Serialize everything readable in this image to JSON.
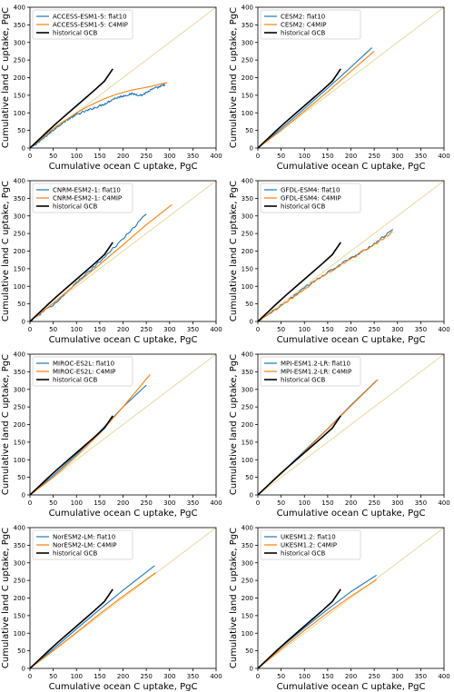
{
  "colors": {
    "flat10": "#1f77b4",
    "c4mip": "#ff7f0e",
    "gcb": "#000000",
    "one_to_one": "#e8d9a0"
  },
  "chart_data": [
    {
      "type": "line",
      "xlabel": "Cumulative ocean C uptake, PgC",
      "ylabel": "Cumulative land C uptake, PgC",
      "xlim": [
        0,
        400
      ],
      "ylim": [
        0,
        400
      ],
      "xticks": [
        0,
        50,
        100,
        150,
        200,
        250,
        300,
        350,
        400
      ],
      "yticks": [
        0,
        50,
        100,
        150,
        200,
        250,
        300,
        350,
        400
      ],
      "legend_position": "top-left",
      "series": [
        {
          "name": "ACCESS-ESM1-5: flat10",
          "style": "flat10",
          "noisy": true,
          "x": [
            0,
            20,
            40,
            60,
            80,
            100,
            120,
            140,
            160,
            180,
            200,
            220,
            240,
            260,
            280,
            290
          ],
          "y": [
            0,
            18,
            40,
            62,
            80,
            95,
            105,
            115,
            125,
            140,
            148,
            154,
            150,
            165,
            175,
            180
          ]
        },
        {
          "name": "ACCESS-ESM1-5: C4MIP",
          "style": "c4mip",
          "noisy": false,
          "x": [
            0,
            20,
            40,
            60,
            80,
            100,
            120,
            140,
            160,
            180,
            200,
            220,
            240,
            260,
            280,
            295
          ],
          "y": [
            0,
            22,
            45,
            65,
            82,
            100,
            115,
            128,
            140,
            150,
            158,
            165,
            170,
            175,
            182,
            186
          ]
        },
        {
          "name": "historical GCB",
          "style": "gcb",
          "noisy": false,
          "x": [
            0,
            20,
            40,
            60,
            80,
            100,
            120,
            140,
            160,
            178
          ],
          "y": [
            0,
            25,
            50,
            74,
            97,
            120,
            143,
            166,
            190,
            225
          ]
        }
      ]
    },
    {
      "type": "line",
      "xlabel": "Cumulative ocean C uptake, PgC",
      "ylabel": "Cumulative land C uptake, PgC",
      "xlim": [
        0,
        400
      ],
      "ylim": [
        0,
        400
      ],
      "xticks": [
        0,
        50,
        100,
        150,
        200,
        250,
        300,
        350,
        400
      ],
      "yticks": [
        0,
        50,
        100,
        150,
        200,
        250,
        300,
        350,
        400
      ],
      "legend_position": "top-left",
      "series": [
        {
          "name": "CESM2: flat10",
          "style": "flat10",
          "noisy": false,
          "x": [
            0,
            50,
            100,
            150,
            200,
            245
          ],
          "y": [
            0,
            55,
            112,
            170,
            230,
            285
          ]
        },
        {
          "name": "CESM2: C4MIP",
          "style": "c4mip",
          "noisy": false,
          "x": [
            0,
            50,
            100,
            150,
            200,
            250
          ],
          "y": [
            0,
            50,
            105,
            160,
            218,
            275
          ]
        },
        {
          "name": "historical GCB",
          "style": "gcb",
          "noisy": false,
          "x": [
            0,
            20,
            40,
            60,
            80,
            100,
            120,
            140,
            160,
            178
          ],
          "y": [
            0,
            25,
            50,
            74,
            97,
            120,
            143,
            166,
            190,
            225
          ]
        }
      ]
    },
    {
      "type": "line",
      "xlabel": "Cumulative ocean C uptake, PgC",
      "ylabel": "Cumulative land C uptake, PgC",
      "xlim": [
        0,
        400
      ],
      "ylim": [
        0,
        400
      ],
      "xticks": [
        0,
        50,
        100,
        150,
        200,
        250,
        300,
        350,
        400
      ],
      "yticks": [
        0,
        50,
        100,
        150,
        200,
        250,
        300,
        350,
        400
      ],
      "legend_position": "top-left",
      "series": [
        {
          "name": "CNRM-ESM2-1: flat10",
          "style": "flat10",
          "noisy": true,
          "x": [
            0,
            50,
            100,
            150,
            200,
            250
          ],
          "y": [
            0,
            48,
            110,
            170,
            235,
            305
          ]
        },
        {
          "name": "CNRM-ESM2-1: C4MIP",
          "style": "c4mip",
          "noisy": false,
          "x": [
            0,
            50,
            100,
            150,
            200,
            250,
            305
          ],
          "y": [
            0,
            52,
            108,
            162,
            218,
            275,
            332
          ]
        },
        {
          "name": "historical GCB",
          "style": "gcb",
          "noisy": false,
          "x": [
            0,
            20,
            40,
            60,
            80,
            100,
            120,
            140,
            160,
            178
          ],
          "y": [
            0,
            25,
            50,
            74,
            97,
            120,
            143,
            166,
            190,
            225
          ]
        }
      ]
    },
    {
      "type": "line",
      "xlabel": "Cumulative ocean C uptake, PgC",
      "ylabel": "Cumulative land C uptake, PgC",
      "xlim": [
        0,
        400
      ],
      "ylim": [
        0,
        400
      ],
      "xticks": [
        0,
        50,
        100,
        150,
        200,
        250,
        300,
        350,
        400
      ],
      "yticks": [
        0,
        50,
        100,
        150,
        200,
        250,
        300,
        350,
        400
      ],
      "legend_position": "top-left",
      "series": [
        {
          "name": "GFDL-ESM4: flat10",
          "style": "flat10",
          "noisy": true,
          "x": [
            0,
            50,
            100,
            150,
            200,
            250,
            290
          ],
          "y": [
            0,
            45,
            95,
            140,
            180,
            220,
            262
          ]
        },
        {
          "name": "GFDL-ESM4: C4MIP",
          "style": "c4mip",
          "noisy": true,
          "x": [
            0,
            50,
            100,
            150,
            200,
            250,
            290
          ],
          "y": [
            0,
            44,
            93,
            138,
            178,
            218,
            255
          ]
        },
        {
          "name": "historical GCB",
          "style": "gcb",
          "noisy": false,
          "x": [
            0,
            20,
            40,
            60,
            80,
            100,
            120,
            140,
            160,
            178
          ],
          "y": [
            0,
            25,
            50,
            74,
            97,
            120,
            143,
            166,
            190,
            225
          ]
        }
      ]
    },
    {
      "type": "line",
      "xlabel": "Cumulative ocean C uptake, PgC",
      "ylabel": "Cumulative land C uptake, PgC",
      "xlim": [
        0,
        400
      ],
      "ylim": [
        0,
        400
      ],
      "xticks": [
        0,
        50,
        100,
        150,
        200,
        250,
        300,
        350,
        400
      ],
      "yticks": [
        0,
        50,
        100,
        150,
        200,
        250,
        300,
        350,
        400
      ],
      "legend_position": "top-left",
      "series": [
        {
          "name": "MIROC-ES2L: flat10",
          "style": "flat10",
          "noisy": false,
          "x": [
            0,
            50,
            100,
            150,
            200,
            250
          ],
          "y": [
            0,
            55,
            115,
            180,
            250,
            312
          ]
        },
        {
          "name": "MIROC-ES2L: C4MIP",
          "style": "c4mip",
          "noisy": false,
          "x": [
            0,
            50,
            100,
            150,
            200,
            258
          ],
          "y": [
            0,
            50,
            110,
            175,
            250,
            342
          ]
        },
        {
          "name": "historical GCB",
          "style": "gcb",
          "noisy": false,
          "x": [
            0,
            20,
            40,
            60,
            80,
            100,
            120,
            140,
            160,
            178
          ],
          "y": [
            0,
            25,
            50,
            74,
            97,
            120,
            143,
            166,
            190,
            225
          ]
        }
      ]
    },
    {
      "type": "line",
      "xlabel": "Cumulative ocean C uptake, PgC",
      "ylabel": "Cumulative land C uptake, PgC",
      "xlim": [
        0,
        400
      ],
      "ylim": [
        0,
        400
      ],
      "xticks": [
        0,
        50,
        100,
        150,
        200,
        250,
        300,
        350,
        400
      ],
      "yticks": [
        0,
        50,
        100,
        150,
        200,
        250,
        300,
        350,
        400
      ],
      "legend_position": "top-left",
      "series": [
        {
          "name": "MPI-ESM1.2-LR: flat10",
          "style": "flat10",
          "noisy": false,
          "x": [
            0,
            50,
            100,
            150,
            200,
            255
          ],
          "y": [
            0,
            62,
            125,
            188,
            255,
            325
          ]
        },
        {
          "name": "MPI-ESM1.2-LR: C4MIP",
          "style": "c4mip",
          "noisy": false,
          "x": [
            0,
            50,
            100,
            150,
            200,
            258
          ],
          "y": [
            0,
            60,
            123,
            187,
            253,
            328
          ]
        },
        {
          "name": "historical GCB",
          "style": "gcb",
          "noisy": false,
          "x": [
            0,
            20,
            40,
            60,
            80,
            100,
            120,
            140,
            160,
            178
          ],
          "y": [
            0,
            25,
            50,
            74,
            97,
            120,
            143,
            166,
            190,
            225
          ]
        }
      ]
    },
    {
      "type": "line",
      "xlabel": "Cumulative ocean C uptake, PgC",
      "ylabel": "Cumulative land C uptake, PgC",
      "xlim": [
        0,
        400
      ],
      "ylim": [
        0,
        400
      ],
      "xticks": [
        0,
        50,
        100,
        150,
        200,
        250,
        300,
        350,
        400
      ],
      "yticks": [
        0,
        50,
        100,
        150,
        200,
        250,
        300,
        350,
        400
      ],
      "legend_position": "top-left",
      "series": [
        {
          "name": "NorESM2-LM: flat10",
          "style": "flat10",
          "noisy": false,
          "x": [
            0,
            50,
            100,
            150,
            200,
            268
          ],
          "y": [
            0,
            55,
            112,
            168,
            222,
            292
          ]
        },
        {
          "name": "NorESM2-LM: C4MIP",
          "style": "c4mip",
          "noisy": false,
          "x": [
            0,
            50,
            100,
            150,
            200,
            270
          ],
          "y": [
            0,
            50,
            102,
            155,
            205,
            272
          ]
        },
        {
          "name": "historical GCB",
          "style": "gcb",
          "noisy": false,
          "x": [
            0,
            20,
            40,
            60,
            80,
            100,
            120,
            140,
            160,
            178
          ],
          "y": [
            0,
            25,
            50,
            74,
            97,
            120,
            143,
            166,
            190,
            225
          ]
        }
      ]
    },
    {
      "type": "line",
      "xlabel": "Cumulative ocean C uptake, PgC",
      "ylabel": "Cumulative land C uptake, PgC",
      "xlim": [
        0,
        400
      ],
      "ylim": [
        0,
        400
      ],
      "xticks": [
        0,
        50,
        100,
        150,
        200,
        250,
        300,
        350,
        400
      ],
      "yticks": [
        0,
        50,
        100,
        150,
        200,
        250,
        300,
        350,
        400
      ],
      "legend_position": "top-left",
      "series": [
        {
          "name": "UKESM1.2: flat10",
          "style": "flat10",
          "noisy": false,
          "x": [
            0,
            50,
            100,
            150,
            200,
            255
          ],
          "y": [
            0,
            60,
            115,
            168,
            218,
            265
          ]
        },
        {
          "name": "UKESM1.2: C4MIP",
          "style": "c4mip",
          "noisy": false,
          "x": [
            0,
            50,
            100,
            150,
            200,
            255
          ],
          "y": [
            0,
            55,
            108,
            158,
            205,
            252
          ]
        },
        {
          "name": "historical GCB",
          "style": "gcb",
          "noisy": false,
          "x": [
            0,
            20,
            40,
            60,
            80,
            100,
            120,
            140,
            160,
            178
          ],
          "y": [
            0,
            25,
            50,
            74,
            97,
            120,
            143,
            166,
            190,
            225
          ]
        }
      ]
    }
  ]
}
